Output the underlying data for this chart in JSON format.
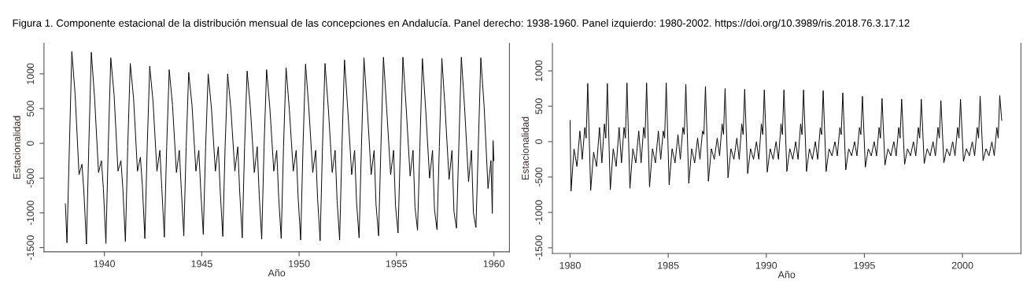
{
  "chart_data": [
    {
      "type": "line",
      "title": "Figura 1. Componente estacional de la distribución mensual de las concepciones en Andalucía. Panel derecho: 1938-1960. Panel izquierdo: 1980-2002. https://doi.org/10.3989/ris.2018.76.3.17.12",
      "xlabel": "Año",
      "ylabel": "Estacionalidad",
      "xlim": [
        1936.9,
        1960.8
      ],
      "ylim": [
        -1560,
        1440
      ],
      "xticks": [
        1940,
        1945,
        1950,
        1955,
        1960
      ],
      "yticks": [
        -1500,
        -1000,
        -500,
        0,
        500,
        1000
      ],
      "series": [
        {
          "color": "#000000",
          "x": [
            1938.0,
            1938.08,
            1938.2,
            1938.33,
            1938.5,
            1938.7,
            1938.85,
            1938.95,
            1939.08,
            1939.2,
            1939.33,
            1939.5,
            1939.7,
            1939.85,
            1939.95,
            1940.08,
            1940.2,
            1940.33,
            1940.5,
            1940.7,
            1940.85,
            1940.95,
            1941.08,
            1941.2,
            1941.33,
            1941.5,
            1941.7,
            1941.85,
            1941.95,
            1942.08,
            1942.2,
            1942.33,
            1942.5,
            1942.7,
            1942.85,
            1942.95,
            1943.08,
            1943.2,
            1943.33,
            1943.5,
            1943.7,
            1943.85,
            1943.95,
            1944.08,
            1944.2,
            1944.33,
            1944.5,
            1944.7,
            1944.85,
            1944.95,
            1945.08,
            1945.2,
            1945.33,
            1945.5,
            1945.7,
            1945.85,
            1945.95,
            1946.08,
            1946.2,
            1946.33,
            1946.5,
            1946.7,
            1946.85,
            1946.95,
            1947.08,
            1947.2,
            1947.33,
            1947.5,
            1947.7,
            1947.85,
            1947.95,
            1948.08,
            1948.2,
            1948.33,
            1948.5,
            1948.7,
            1948.85,
            1948.95,
            1949.08,
            1949.2,
            1949.33,
            1949.5,
            1949.7,
            1949.85,
            1949.95,
            1950.08,
            1950.2,
            1950.33,
            1950.5,
            1950.7,
            1950.85,
            1950.95,
            1951.08,
            1951.2,
            1951.33,
            1951.5,
            1951.7,
            1951.85,
            1951.95,
            1952.08,
            1952.2,
            1952.33,
            1952.5,
            1952.7,
            1952.85,
            1952.95,
            1953.08,
            1953.2,
            1953.33,
            1953.5,
            1953.7,
            1953.85,
            1953.95,
            1954.08,
            1954.2,
            1954.33,
            1954.5,
            1954.7,
            1954.85,
            1954.95,
            1955.08,
            1955.2,
            1955.33,
            1955.5,
            1955.7,
            1955.85,
            1955.95,
            1956.08,
            1956.2,
            1956.33,
            1956.5,
            1956.7,
            1956.85,
            1956.95,
            1957.08,
            1957.2,
            1957.33,
            1957.5,
            1957.7,
            1957.85,
            1957.95,
            1958.08,
            1958.2,
            1958.33,
            1958.5,
            1958.7,
            1958.85,
            1958.95,
            1959.08,
            1959.2,
            1959.33,
            1959.5,
            1959.7,
            1959.85,
            1959.92,
            1959.96,
            1960.0
          ],
          "values": [
            -870,
            -1430,
            -100,
            1320,
            700,
            -450,
            -300,
            -700,
            -1450,
            -50,
            1310,
            650,
            -420,
            -250,
            -650,
            -1440,
            -50,
            1230,
            700,
            -400,
            -250,
            -650,
            -1410,
            -50,
            1150,
            650,
            -400,
            -200,
            -600,
            -1370,
            -50,
            1110,
            600,
            -400,
            -100,
            -650,
            -1350,
            -50,
            1060,
            550,
            -420,
            -100,
            -660,
            -1330,
            -50,
            1020,
            550,
            -400,
            -100,
            -680,
            -1310,
            -50,
            1000,
            500,
            -400,
            -50,
            -690,
            -1340,
            -50,
            1000,
            480,
            -400,
            -50,
            -700,
            -1360,
            -50,
            1040,
            500,
            -420,
            -50,
            -740,
            -1380,
            -50,
            1060,
            500,
            -400,
            -100,
            -770,
            -1370,
            -50,
            1090,
            480,
            -400,
            -100,
            -780,
            -1390,
            -50,
            1140,
            500,
            -420,
            -100,
            -800,
            -1400,
            -50,
            1150,
            500,
            -420,
            -100,
            -820,
            -1390,
            -50,
            1200,
            480,
            -450,
            -100,
            -850,
            -1360,
            -50,
            1230,
            500,
            -450,
            -100,
            -880,
            -1330,
            -50,
            1240,
            480,
            -450,
            -100,
            -900,
            -1290,
            -50,
            1240,
            500,
            -470,
            -100,
            -920,
            -1250,
            -50,
            1220,
            480,
            -500,
            -100,
            -950,
            -1240,
            -50,
            1220,
            480,
            -520,
            -100,
            -980,
            -1220,
            -50,
            1240,
            500,
            -550,
            -100,
            -1000,
            -1210,
            -50,
            1230,
            530,
            -650,
            -250,
            -1010,
            40,
            -250
          ]
        }
      ]
    },
    {
      "type": "line",
      "xlabel": "Año",
      "ylabel": "Estacionalidad",
      "xlim": [
        1979.1,
        2002.98
      ],
      "ylim": [
        -1580,
        1390
      ],
      "xticks": [
        1980,
        1985,
        1990,
        1995,
        2000
      ],
      "yticks": [
        -1500,
        -1000,
        -500,
        0,
        500,
        1000
      ],
      "series": [
        {
          "color": "#000000",
          "x": [
            1980.0,
            1980.05,
            1980.2,
            1980.35,
            1980.5,
            1980.62,
            1980.75,
            1980.82,
            1980.9,
            1981.05,
            1981.2,
            1981.35,
            1981.5,
            1981.62,
            1981.75,
            1981.82,
            1981.9,
            1982.05,
            1982.2,
            1982.35,
            1982.5,
            1982.62,
            1982.75,
            1982.82,
            1982.9,
            1983.05,
            1983.2,
            1983.35,
            1983.5,
            1983.62,
            1983.75,
            1983.82,
            1983.9,
            1984.05,
            1984.2,
            1984.35,
            1984.5,
            1984.62,
            1984.75,
            1984.82,
            1984.9,
            1985.05,
            1985.2,
            1985.35,
            1985.5,
            1985.62,
            1985.75,
            1985.82,
            1985.9,
            1986.05,
            1986.2,
            1986.35,
            1986.5,
            1986.62,
            1986.75,
            1986.82,
            1986.9,
            1987.05,
            1987.2,
            1987.35,
            1987.5,
            1987.62,
            1987.75,
            1987.82,
            1987.9,
            1988.05,
            1988.2,
            1988.35,
            1988.5,
            1988.62,
            1988.75,
            1988.82,
            1988.9,
            1989.05,
            1989.2,
            1989.35,
            1989.5,
            1989.62,
            1989.75,
            1989.82,
            1989.9,
            1990.05,
            1990.2,
            1990.35,
            1990.5,
            1990.62,
            1990.75,
            1990.82,
            1990.9,
            1991.05,
            1991.2,
            1991.35,
            1991.5,
            1991.62,
            1991.75,
            1991.82,
            1991.9,
            1992.05,
            1992.2,
            1992.35,
            1992.5,
            1992.62,
            1992.75,
            1992.82,
            1992.9,
            1993.05,
            1993.2,
            1993.35,
            1993.5,
            1993.62,
            1993.75,
            1993.82,
            1993.9,
            1994.05,
            1994.2,
            1994.35,
            1994.5,
            1994.62,
            1994.75,
            1994.82,
            1994.9,
            1995.05,
            1995.2,
            1995.35,
            1995.5,
            1995.62,
            1995.75,
            1995.82,
            1995.9,
            1996.05,
            1996.2,
            1996.35,
            1996.5,
            1996.62,
            1996.75,
            1996.82,
            1996.9,
            1997.05,
            1997.2,
            1997.35,
            1997.5,
            1997.62,
            1997.75,
            1997.82,
            1997.9,
            1998.05,
            1998.2,
            1998.35,
            1998.5,
            1998.62,
            1998.75,
            1998.82,
            1998.9,
            1999.05,
            1999.2,
            1999.35,
            1999.5,
            1999.62,
            1999.75,
            1999.82,
            1999.9,
            2000.05,
            2000.2,
            2000.35,
            2000.5,
            2000.62,
            2000.75,
            2000.82,
            2000.9,
            2001.05,
            2001.2,
            2001.35,
            2001.5,
            2001.62,
            2001.75,
            2001.82,
            2001.9,
            2002.0
          ],
          "values": [
            300,
            -700,
            -100,
            -350,
            150,
            -250,
            200,
            50,
            820,
            -690,
            -150,
            -350,
            200,
            -300,
            250,
            50,
            820,
            -680,
            -100,
            -350,
            200,
            -300,
            200,
            50,
            830,
            -660,
            -100,
            -300,
            150,
            -300,
            200,
            50,
            830,
            -640,
            -100,
            -300,
            150,
            -250,
            150,
            50,
            830,
            -610,
            -100,
            -300,
            100,
            -250,
            200,
            100,
            810,
            -590,
            -100,
            -300,
            50,
            -250,
            150,
            100,
            780,
            -560,
            -100,
            -250,
            50,
            -200,
            250,
            100,
            750,
            -510,
            -100,
            -250,
            50,
            -250,
            250,
            100,
            740,
            -450,
            -100,
            -250,
            0,
            -250,
            250,
            100,
            730,
            -430,
            -100,
            -250,
            0,
            -250,
            250,
            100,
            730,
            -420,
            -100,
            -250,
            0,
            -250,
            250,
            100,
            730,
            -420,
            -100,
            -250,
            0,
            -250,
            200,
            100,
            720,
            -420,
            -100,
            -200,
            0,
            -200,
            200,
            100,
            690,
            -400,
            -100,
            -200,
            0,
            -200,
            200,
            100,
            640,
            -360,
            -100,
            -200,
            0,
            -200,
            200,
            50,
            610,
            -330,
            -100,
            -200,
            0,
            -200,
            200,
            50,
            600,
            -320,
            -100,
            -200,
            0,
            -200,
            200,
            50,
            600,
            -310,
            -100,
            -200,
            0,
            -200,
            200,
            50,
            580,
            -300,
            -100,
            -200,
            0,
            -200,
            200,
            50,
            600,
            -280,
            -100,
            -200,
            0,
            -200,
            200,
            50,
            640,
            -270,
            -100,
            -200,
            0,
            -200,
            200,
            50,
            650,
            300
          ]
        }
      ]
    }
  ]
}
